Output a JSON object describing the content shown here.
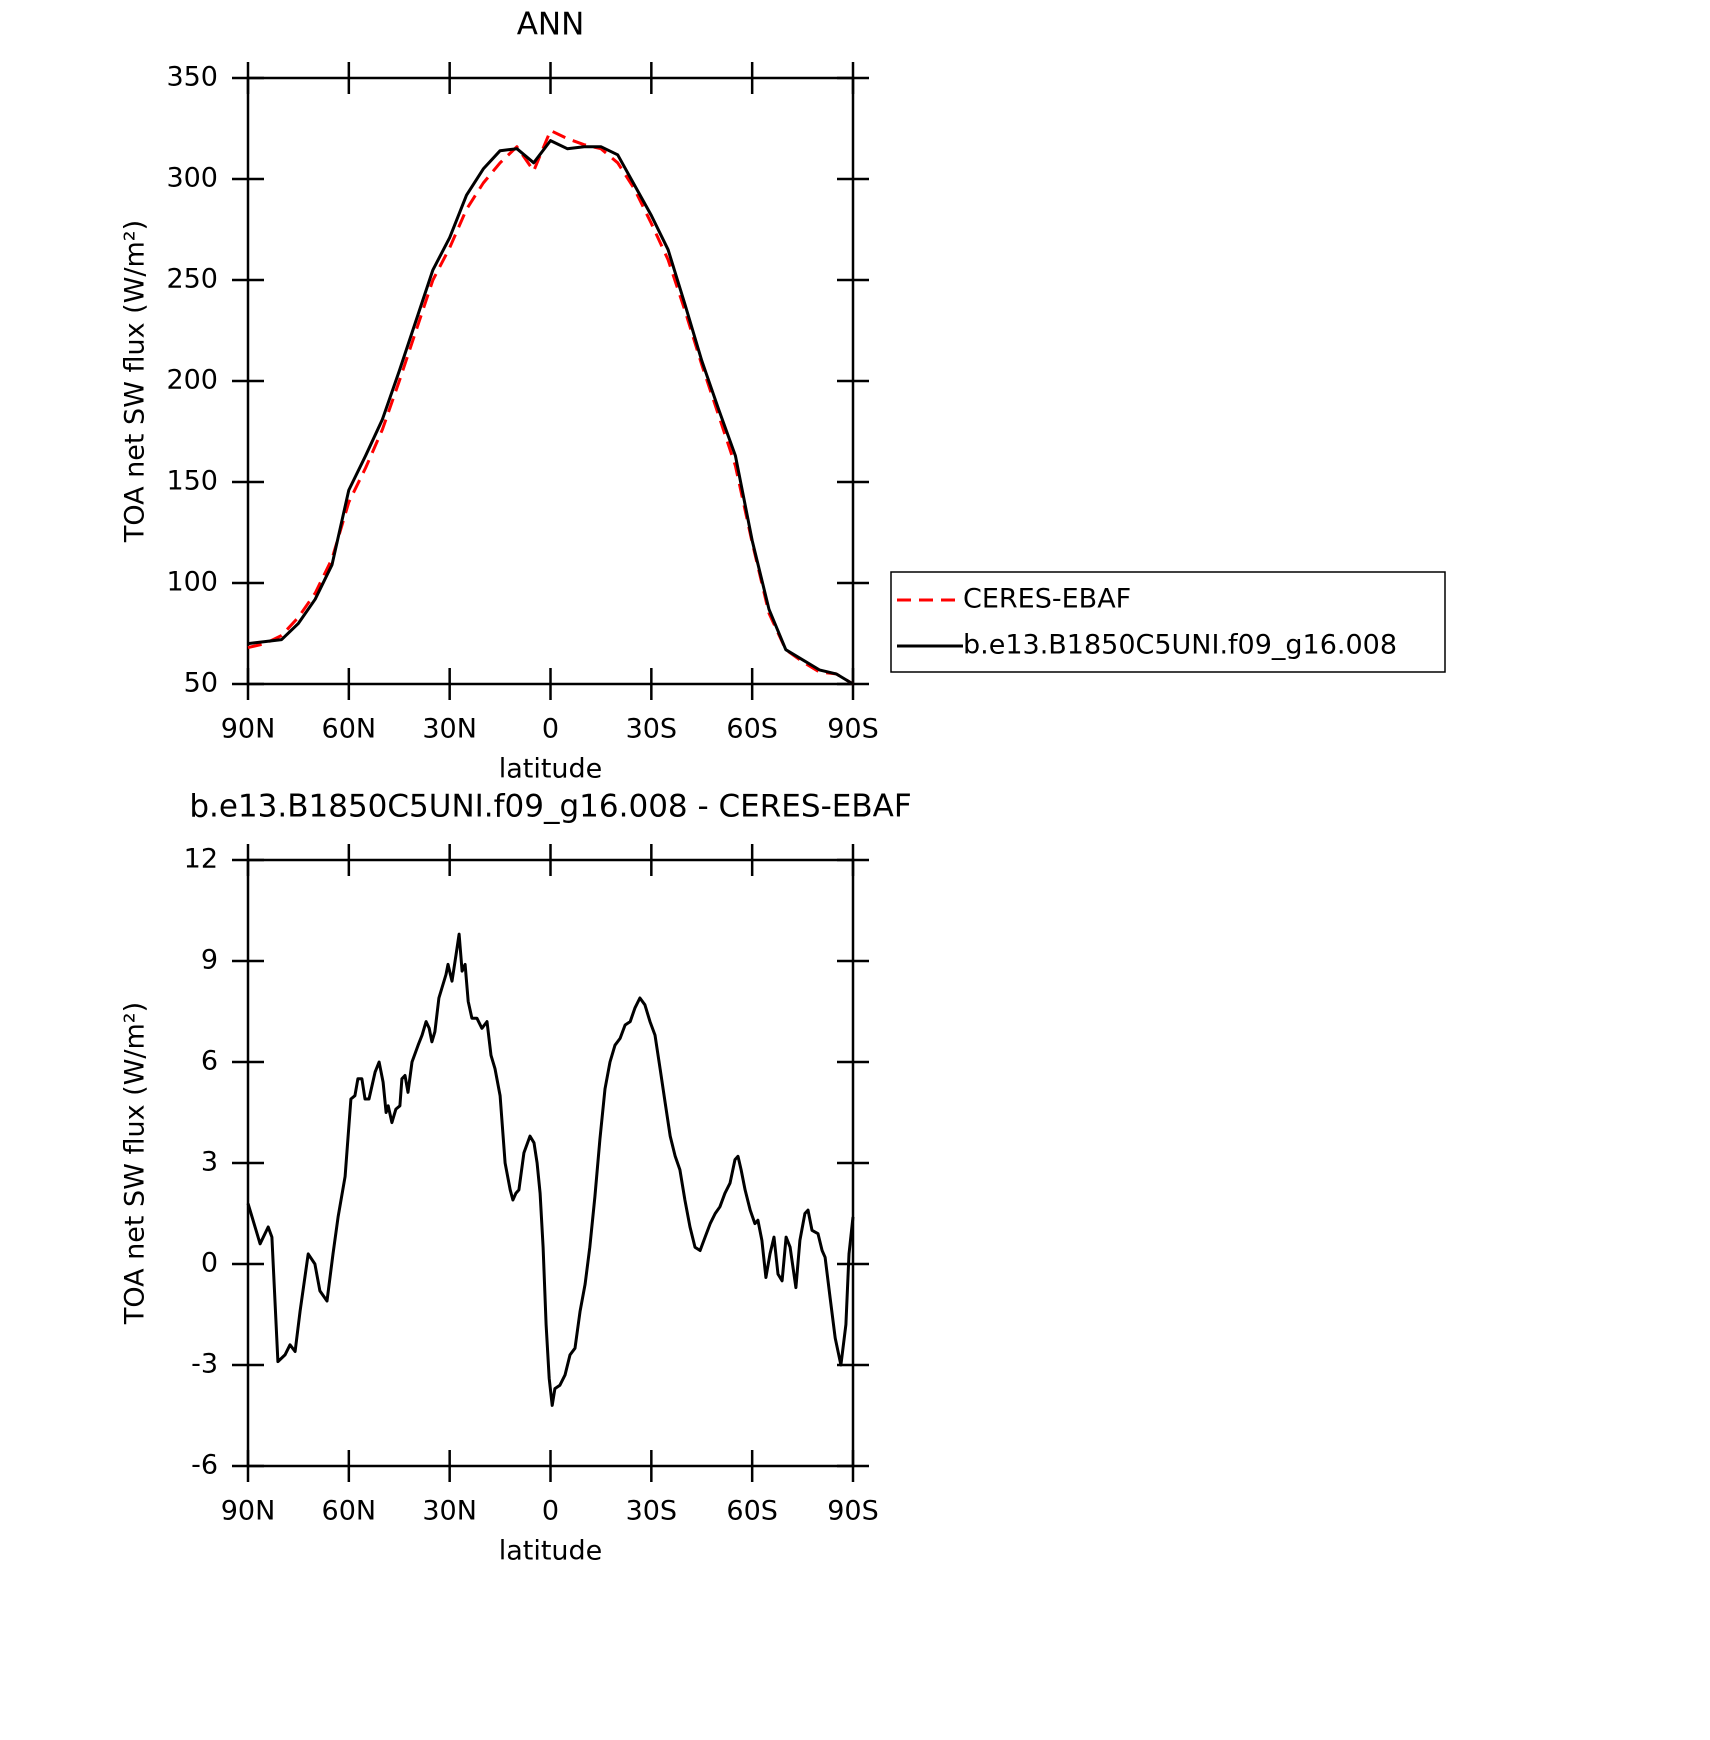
{
  "chart_data": [
    {
      "type": "line",
      "title": "ANN",
      "x_label": "latitude",
      "y_label": "TOA net SW flux (W/m²)",
      "xlim": [
        90,
        -90
      ],
      "xticks": [
        {
          "value": 90,
          "label": "90N"
        },
        {
          "value": 60,
          "label": "60N"
        },
        {
          "value": 30,
          "label": "30N"
        },
        0,
        {
          "value": -30,
          "label": "30S"
        },
        {
          "value": -60,
          "label": "60S"
        },
        {
          "value": -90,
          "label": "90S"
        }
      ],
      "ylim": [
        50,
        350
      ],
      "yticks": [
        50,
        100,
        150,
        200,
        250,
        300,
        350
      ],
      "legend": "right",
      "x": [
        90,
        85,
        80,
        75,
        70,
        65,
        60,
        55,
        50,
        45,
        40,
        35,
        30,
        25,
        20,
        15,
        10,
        5,
        0,
        -5,
        -10,
        -15,
        -20,
        -25,
        -30,
        -35,
        -40,
        -45,
        -50,
        -55,
        -60,
        -65,
        -70,
        -75,
        -80,
        -85,
        -90
      ],
      "series": [
        {
          "name": "CERES-EBAF",
          "color": "#ff0000",
          "dash": true,
          "values": [
            68,
            70,
            74,
            83,
            95,
            112,
            140,
            157,
            176,
            200,
            225,
            250,
            266,
            285,
            298,
            308,
            316,
            304,
            324,
            320,
            317,
            315,
            308,
            295,
            278,
            260,
            235,
            208,
            183,
            158,
            120,
            85,
            67,
            61,
            56,
            55,
            50
          ]
        },
        {
          "name": "b.e13.B1850C5UNI.f09_g16.008",
          "color": "#000000",
          "dash": false,
          "values": [
            70,
            71,
            72,
            80,
            92,
            109,
            146,
            163,
            181,
            205,
            230,
            255,
            271,
            292,
            305,
            314,
            315,
            308,
            319,
            315,
            316,
            316,
            312,
            297,
            282,
            265,
            238,
            210,
            186,
            163,
            121,
            87,
            67,
            62,
            57,
            55,
            50
          ]
        }
      ]
    },
    {
      "type": "line",
      "title": "b.e13.B1850C5UNI.f09_g16.008 - CERES-EBAF",
      "x_label": "latitude",
      "y_label": "TOA net SW flux (W/m²)",
      "xlim": [
        90,
        -90
      ],
      "xticks": [
        {
          "value": 90,
          "label": "90N"
        },
        {
          "value": 60,
          "label": "60N"
        },
        {
          "value": 30,
          "label": "30N"
        },
        0,
        {
          "value": -30,
          "label": "30S"
        },
        {
          "value": -60,
          "label": "60S"
        },
        {
          "value": -90,
          "label": "90S"
        }
      ],
      "ylim": [
        -6,
        12
      ],
      "yticks": [
        -6,
        -3,
        0,
        3,
        6,
        9,
        12
      ],
      "x": [
        90,
        86.4,
        84.0,
        82.9,
        81.1,
        79.0,
        77.5,
        76.0,
        74.5,
        72.1,
        70.1,
        68.6,
        66.5,
        64.7,
        63.2,
        61.1,
        59.4,
        58.2,
        57.3,
        56.1,
        55.2,
        54.0,
        52.2,
        51.0,
        49.8,
        48.9,
        48.3,
        47.2,
        46.0,
        44.8,
        44.2,
        43.3,
        42.4,
        41.2,
        39.4,
        38.2,
        37.0,
        36.1,
        35.3,
        34.4,
        33.2,
        31.1,
        30.5,
        29.3,
        28.1,
        27.2,
        26.3,
        25.4,
        24.5,
        23.4,
        21.9,
        20.4,
        18.9,
        17.7,
        16.5,
        15.0,
        13.5,
        12.0,
        11.2,
        10.3,
        9.4,
        7.9,
        6.1,
        4.9,
        4.0,
        3.1,
        2.2,
        1.3,
        0.4,
        -0.5,
        -1.3,
        -2.8,
        -4.3,
        -5.8,
        -7.3,
        -8.8,
        -10.3,
        -11.7,
        -13.2,
        -14.7,
        -16.2,
        -17.7,
        -19.2,
        -20.7,
        -22.2,
        -23.7,
        -25.1,
        -26.6,
        -28.1,
        -29.6,
        -31.1,
        -32.6,
        -34.1,
        -35.6,
        -37.1,
        -38.5,
        -40.0,
        -41.5,
        -43.0,
        -44.5,
        -46.0,
        -47.5,
        -49.0,
        -50.4,
        -51.9,
        -53.4,
        -54.9,
        -55.8,
        -56.7,
        -57.9,
        -59.4,
        -60.8,
        -61.7,
        -62.9,
        -64.1,
        -65.3,
        -66.5,
        -67.7,
        -68.9,
        -70.1,
        -71.3,
        -73.0,
        -74.2,
        -75.7,
        -76.6,
        -77.8,
        -79.6,
        -80.8,
        -81.7,
        -83.2,
        -84.7,
        -86.4,
        -87.9,
        -88.8,
        -90
      ],
      "series": [
        {
          "name": "b.e13.B1850C5UNI.f09_g16.008",
          "color": "#000000",
          "values": [
            1.8,
            0.6,
            1.1,
            0.8,
            -2.9,
            -2.7,
            -2.4,
            -2.6,
            -1.4,
            0.3,
            0,
            -0.8,
            -1.1,
            0.3,
            1.4,
            2.6,
            4.9,
            5.0,
            5.5,
            5.5,
            4.9,
            4.9,
            5.7,
            6.0,
            5.4,
            4.5,
            4.7,
            4.2,
            4.6,
            4.7,
            5.5,
            5.6,
            5.1,
            6.0,
            6.5,
            6.8,
            7.2,
            7.0,
            6.6,
            6.9,
            7.9,
            8.6,
            8.9,
            8.4,
            9.2,
            9.8,
            8.7,
            8.9,
            7.8,
            7.3,
            7.3,
            7.0,
            7.2,
            6.2,
            5.8,
            5.0,
            3.0,
            2.2,
            1.9,
            2.1,
            2.2,
            3.3,
            3.8,
            3.6,
            3.0,
            2.1,
            0.5,
            -1.8,
            -3.4,
            -4.2,
            -3.7,
            -3.6,
            -3.3,
            -2.7,
            -2.5,
            -1.4,
            -0.6,
            0.5,
            2.0,
            3.7,
            5.2,
            6.0,
            6.5,
            6.7,
            7.1,
            7.2,
            7.6,
            7.9,
            7.7,
            7.2,
            6.8,
            5.8,
            4.8,
            3.8,
            3.2,
            2.8,
            1.9,
            1.1,
            0.5,
            0.4,
            0.8,
            1.2,
            1.5,
            1.7,
            2.1,
            2.4,
            3.1,
            3.2,
            2.8,
            2.2,
            1.6,
            1.2,
            1.3,
            0.7,
            -0.4,
            0.3,
            0.8,
            -0.3,
            -0.5,
            0.8,
            0.5,
            -0.7,
            0.7,
            1.5,
            1.6,
            1.0,
            0.9,
            0.4,
            0.2,
            -1.0,
            -2.2,
            -3.0,
            -1.8,
            0.3,
            1.4
          ]
        }
      ]
    }
  ]
}
